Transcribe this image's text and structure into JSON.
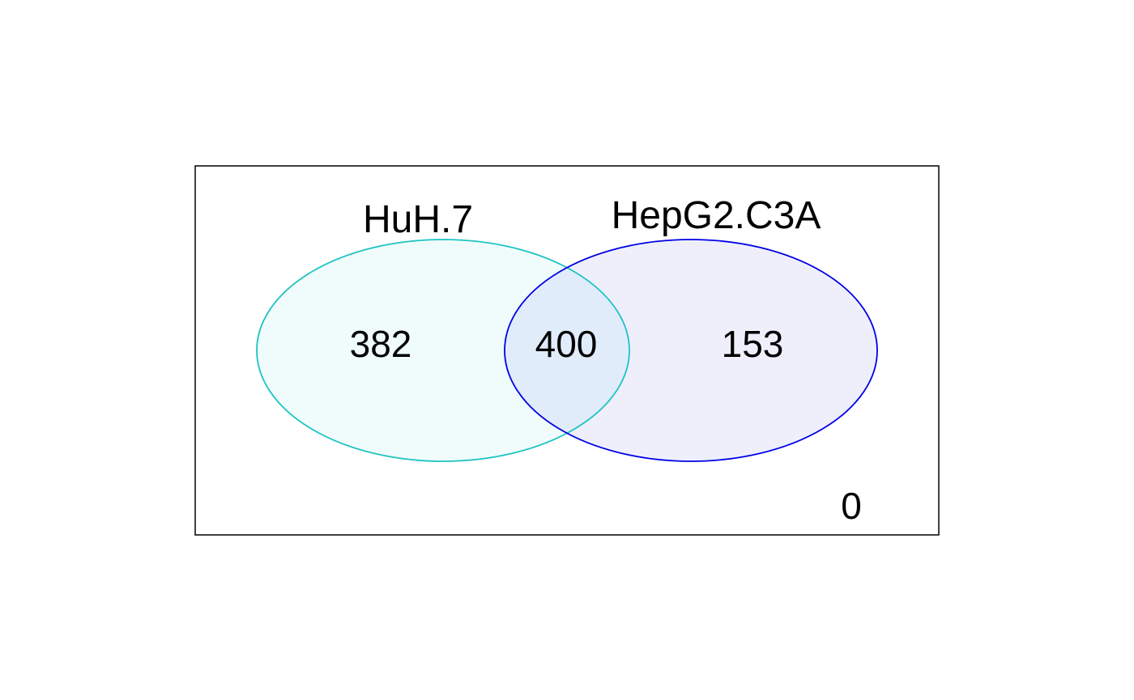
{
  "sets": [
    {
      "name": "HuH.7",
      "stroke": "#1fc3c3",
      "fill": "#effcfb"
    },
    {
      "name": "HepG2.C3A",
      "stroke": "#0000e6",
      "fill": "#efeffc"
    }
  ],
  "overlap_fill": "#e1ecfb",
  "counts": {
    "huh7_only": "382",
    "both": "400",
    "hepg2_only": "153",
    "neither": "0"
  }
}
